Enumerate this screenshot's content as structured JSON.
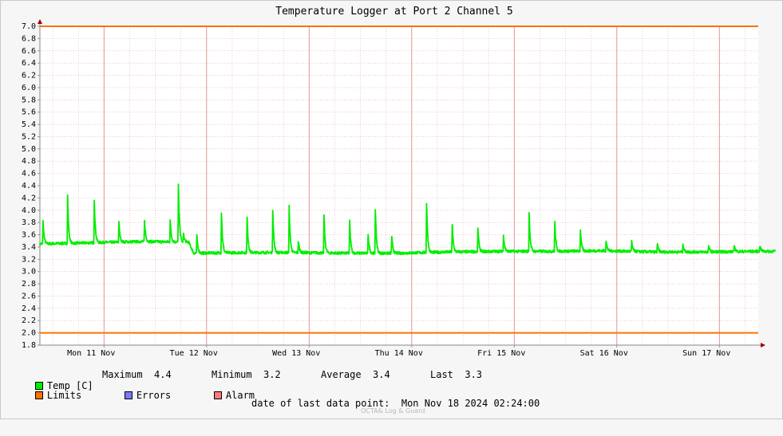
{
  "chart_data": {
    "type": "line",
    "title": "Temperature Logger at Port 2 Channel 5",
    "ylim": [
      1.8,
      7.0
    ],
    "yticks": [
      1.8,
      2.0,
      2.2,
      2.4,
      2.6,
      2.8,
      3.0,
      3.2,
      3.4,
      3.6,
      3.8,
      4.0,
      4.2,
      4.4,
      4.6,
      4.8,
      5.0,
      5.2,
      5.4,
      5.6,
      5.8,
      6.0,
      6.2,
      6.4,
      6.6,
      6.8,
      7.0
    ],
    "xlim_days": [
      0,
      7.17
    ],
    "x_tick_labels": [
      "Mon 11 Nov",
      "Tue 12 Nov",
      "Wed 13 Nov",
      "Thu 14 Nov",
      "Fri 15 Nov",
      "Sat 16 Nov",
      "Sun 17 Nov"
    ],
    "grid": true,
    "limits": [
      7.0,
      2.0
    ],
    "series": [
      {
        "name": "Temp [C]",
        "color": "#00ee00",
        "baseline": [
          [
            0.0,
            3.45
          ],
          [
            0.5,
            3.47
          ],
          [
            1.0,
            3.49
          ],
          [
            1.45,
            3.48
          ],
          [
            1.5,
            3.3
          ],
          [
            2.0,
            3.31
          ],
          [
            2.5,
            3.31
          ],
          [
            3.0,
            3.3
          ],
          [
            3.5,
            3.3
          ],
          [
            4.0,
            3.32
          ],
          [
            4.5,
            3.33
          ],
          [
            5.0,
            3.33
          ],
          [
            5.5,
            3.34
          ],
          [
            6.0,
            3.32
          ],
          [
            6.5,
            3.32
          ],
          [
            7.0,
            3.33
          ],
          [
            7.17,
            3.33
          ]
        ],
        "spikes": [
          [
            0.03,
            3.82
          ],
          [
            0.27,
            4.2
          ],
          [
            0.53,
            4.18
          ],
          [
            0.77,
            3.8
          ],
          [
            1.02,
            3.82
          ],
          [
            1.27,
            3.85
          ],
          [
            1.35,
            4.42
          ],
          [
            1.4,
            3.62
          ],
          [
            1.53,
            3.6
          ],
          [
            1.77,
            3.97
          ],
          [
            2.02,
            3.88
          ],
          [
            2.27,
            4.02
          ],
          [
            2.43,
            4.06
          ],
          [
            2.52,
            3.5
          ],
          [
            2.77,
            3.9
          ],
          [
            3.02,
            3.82
          ],
          [
            3.27,
            4.03
          ],
          [
            3.2,
            3.62
          ],
          [
            3.43,
            3.58
          ],
          [
            3.77,
            4.12
          ],
          [
            4.02,
            3.76
          ],
          [
            4.27,
            3.72
          ],
          [
            4.52,
            3.6
          ],
          [
            4.77,
            3.93
          ],
          [
            5.02,
            3.8
          ],
          [
            5.27,
            3.67
          ],
          [
            5.52,
            3.5
          ],
          [
            5.77,
            3.48
          ],
          [
            6.02,
            3.45
          ],
          [
            6.27,
            3.45
          ],
          [
            6.52,
            3.42
          ],
          [
            6.77,
            3.42
          ],
          [
            7.02,
            3.42
          ]
        ]
      },
      {
        "name": "Limits",
        "color": "#ff7000"
      }
    ]
  },
  "legend": {
    "temp_label": "Temp [C]",
    "maximum_label": "Maximum",
    "maximum_value": "4.4",
    "minimum_label": "Minimum",
    "minimum_value": "3.2",
    "average_label": "Average",
    "average_value": "3.4",
    "last_label": "Last",
    "last_value": "3.3",
    "limits_label": "Limits",
    "errors_label": "Errors",
    "alarm_label": "Alarm",
    "colors": {
      "temp": "#00ee00",
      "limits": "#ff7000",
      "errors": "#7a7aff",
      "alarm": "#ff7a7a"
    }
  },
  "footer": {
    "last_point_label": "date of last data point:",
    "last_point_value": "Mon Nov 18 2024 02:24:00",
    "watermark": "OCTA& Log & Guard"
  }
}
